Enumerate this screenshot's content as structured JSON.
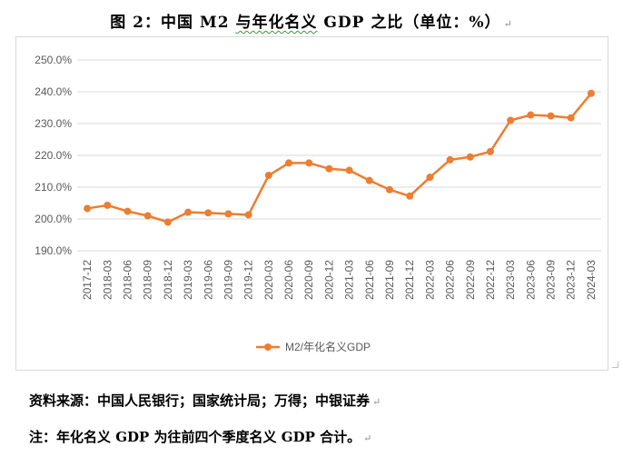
{
  "caption": {
    "prefix": "图 2：中国 M2 ",
    "highlight": "与年化名义",
    "suffix": " GDP 之比（单位：%）"
  },
  "paragraph_mark": "↵",
  "chart_data": {
    "type": "line",
    "categories": [
      "2017-12",
      "2018-03",
      "2018-06",
      "2018-09",
      "2018-12",
      "2019-03",
      "2019-06",
      "2019-09",
      "2019-12",
      "2020-03",
      "2020-06",
      "2020-09",
      "2020-12",
      "2021-03",
      "2021-06",
      "2021-09",
      "2021-12",
      "2022-03",
      "2022-06",
      "2022-09",
      "2022-12",
      "2023-03",
      "2023-06",
      "2023-09",
      "2023-12",
      "2024-03"
    ],
    "series": [
      {
        "name": "M2/年化名义GDP",
        "color": "#ED7D31",
        "values": [
          203.3,
          204.3,
          202.4,
          201.0,
          199.0,
          202.1,
          201.9,
          201.6,
          201.3,
          213.7,
          217.6,
          217.6,
          215.8,
          215.3,
          212.1,
          209.2,
          207.2,
          213.1,
          218.6,
          219.5,
          221.2,
          231.0,
          232.7,
          232.4,
          231.8,
          239.5
        ]
      }
    ],
    "ylim": [
      190,
      250
    ],
    "yticks": [
      "190.0%",
      "200.0%",
      "210.0%",
      "220.0%",
      "230.0%",
      "240.0%",
      "250.0%"
    ],
    "ytick_values": [
      190,
      200,
      210,
      220,
      230,
      240,
      250
    ],
    "grid": true,
    "legend": "bottom-center"
  },
  "notes": {
    "source": "资料来源：中国人民银行；国家统计局；万得；中银证券",
    "footnote": "注：年化名义 GDP 为往前四个季度名义 GDP 合计。"
  },
  "colors": {
    "line": "#ED7D31",
    "grid": "#d9d9d9",
    "axis_text": "#595959"
  }
}
